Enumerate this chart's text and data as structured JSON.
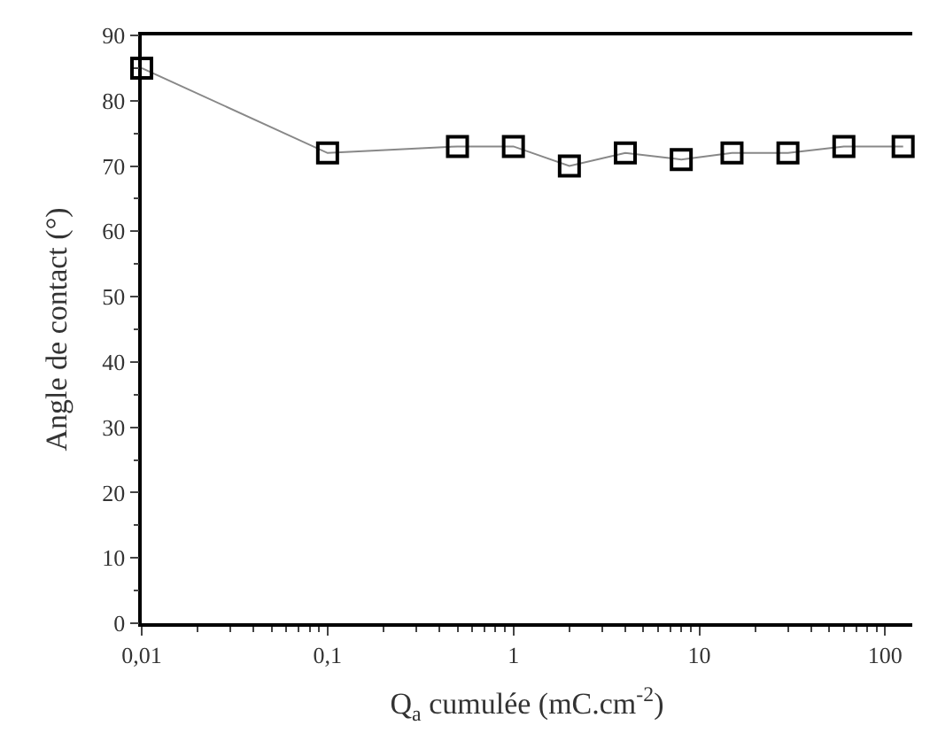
{
  "chart_data": {
    "type": "line",
    "xlabel": "Q$_{a}$ cumulée (mC.cm$^{-2}$)",
    "ylabel": "Angle de contact (°)",
    "x": [
      0.01,
      0.1,
      0.5,
      1,
      2,
      4,
      8,
      15,
      30,
      60,
      125
    ],
    "series": [
      {
        "color": "#000000",
        "values": [
          85,
          72,
          73,
          73,
          70,
          72,
          71,
          72,
          72,
          73,
          73
        ]
      }
    ],
    "log": "x",
    "xlim": [
      0.01,
      140
    ],
    "xticks": [
      {
        "value": 0.01,
        "label": "0,01"
      },
      {
        "value": 0.1,
        "label": "0,1"
      },
      1,
      10,
      100
    ],
    "ylim": [
      0,
      90
    ],
    "yticks": [
      0,
      10,
      20,
      30,
      40,
      50,
      60,
      70,
      80,
      90
    ],
    "marker": "square",
    "line_style": "solid",
    "legend": false
  }
}
